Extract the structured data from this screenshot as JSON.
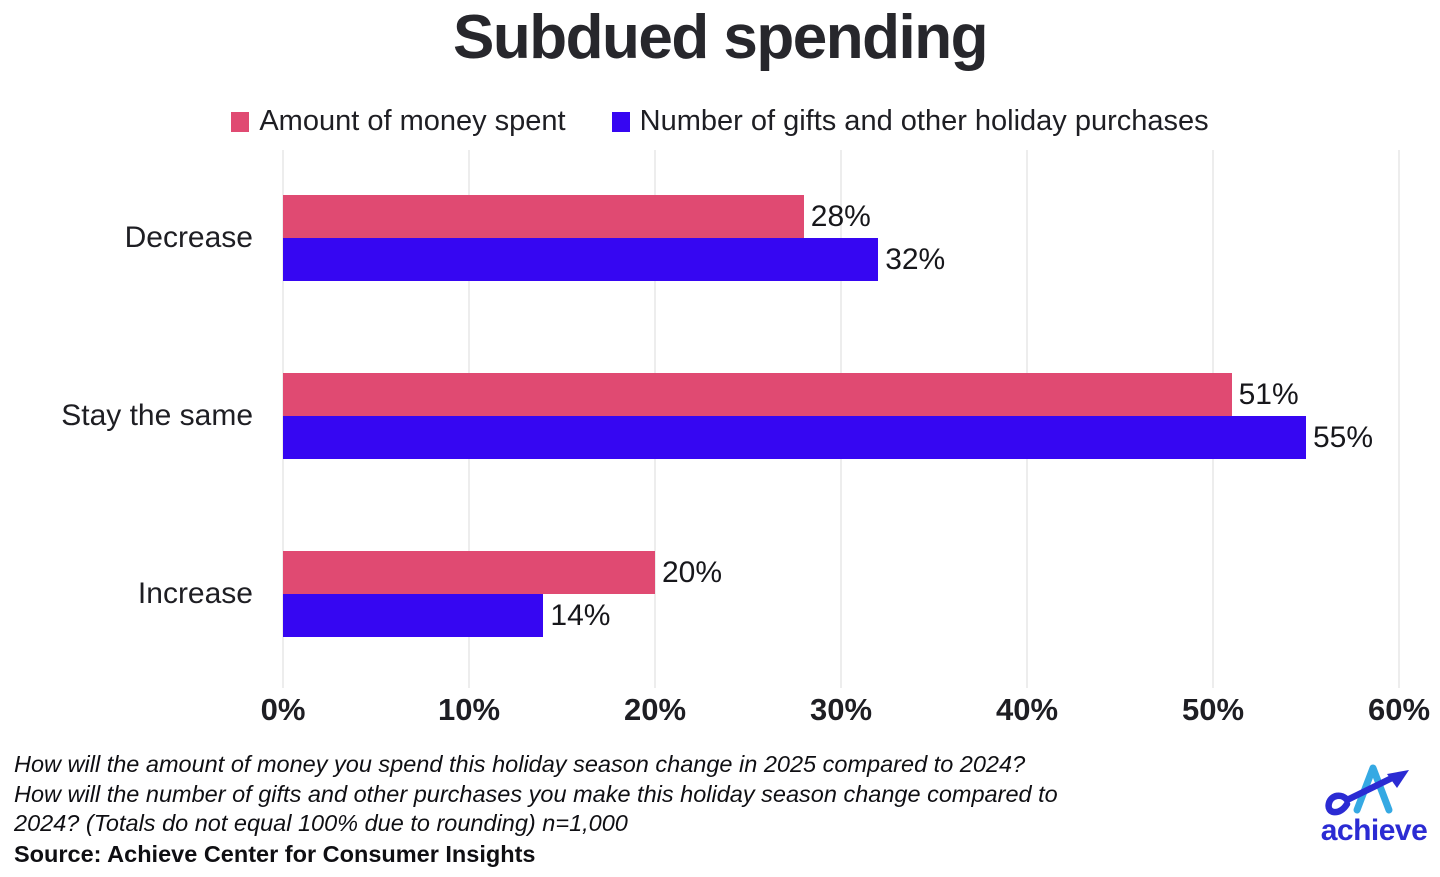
{
  "title": "Subdued spending",
  "colors": {
    "money_spent": "#E04A72",
    "gifts_purchases": "#3606F2",
    "text": "#212126",
    "gridline": "#EDEDED",
    "logo_light_blue": "#35A9E3",
    "logo_indigo": "#2B2BD3"
  },
  "chart_data": {
    "type": "bar",
    "orientation": "horizontal",
    "title": "Subdued spending",
    "categories": [
      "Decrease",
      "Stay the same",
      "Increase"
    ],
    "series": [
      {
        "name": "Amount of money spent",
        "color": "#E04A72",
        "values": [
          28,
          51,
          20
        ]
      },
      {
        "name": "Number of gifts and other holiday purchases",
        "color": "#3606F2",
        "values": [
          32,
          55,
          14
        ]
      }
    ],
    "value_suffix": "%",
    "xlim": [
      0,
      60
    ],
    "x_ticks": [
      {
        "value": 0,
        "label": "0%"
      },
      {
        "value": 10,
        "label": "10%"
      },
      {
        "value": 20,
        "label": "20%"
      },
      {
        "value": 30,
        "label": "30%"
      },
      {
        "value": 40,
        "label": "40%"
      },
      {
        "value": 50,
        "label": "50%"
      },
      {
        "value": 60,
        "label": "60%"
      }
    ],
    "grid": true,
    "legend_position": "top"
  },
  "footnote": {
    "lines": [
      "How will the amount of money you spend this holiday season change in 2025 compared to 2024?",
      "How will the number of gifts and other purchases you make this holiday season change compared to",
      "2024? (Totals do not equal 100% due to rounding) n=1,000"
    ],
    "source": "Source: Achieve Center for Consumer Insights"
  },
  "logo": {
    "wordmark": "achieve"
  }
}
